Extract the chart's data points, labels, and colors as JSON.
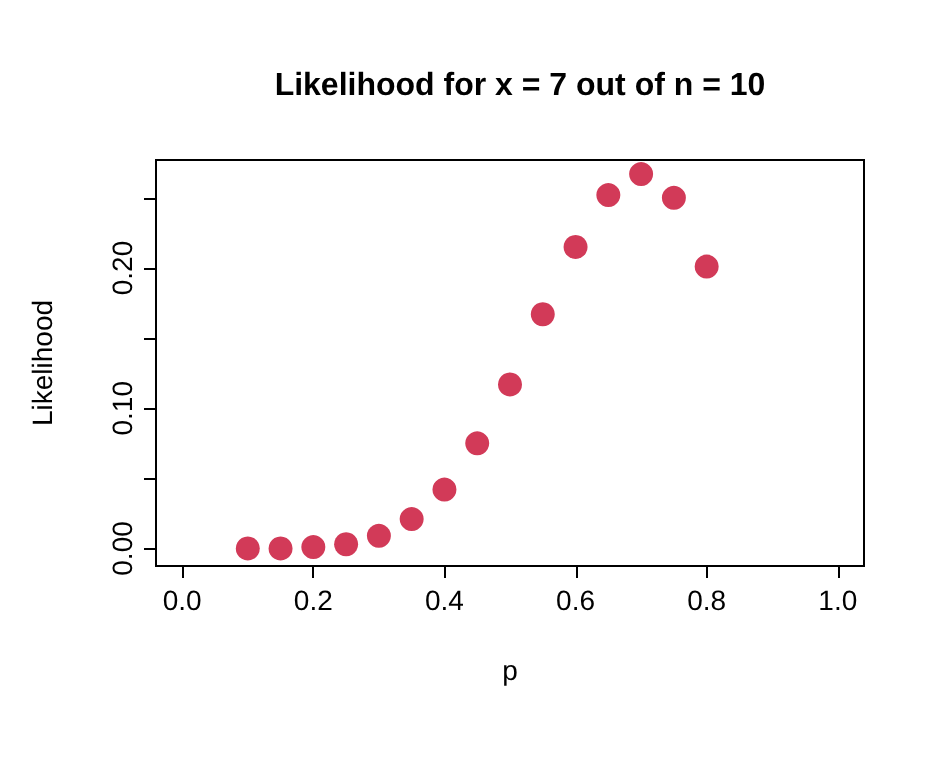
{
  "chart_data": {
    "type": "scatter",
    "title": "Likelihood for x = 7 out of n = 10",
    "xlabel": "p",
    "ylabel": "Likelihood",
    "x": [
      0.1,
      0.15,
      0.2,
      0.25,
      0.3,
      0.35,
      0.4,
      0.45,
      0.5,
      0.55,
      0.6,
      0.65,
      0.7,
      0.75,
      0.8
    ],
    "values": [
      0.0,
      0.0,
      0.001,
      0.003,
      0.009,
      0.021,
      0.042,
      0.075,
      0.117,
      0.167,
      0.215,
      0.252,
      0.267,
      0.25,
      0.201
    ],
    "color": "#d23a58",
    "marker": "circle",
    "grid": false,
    "xlim": [
      -0.04,
      1.04
    ],
    "xticks": [
      {
        "value": 0,
        "label": "0.0"
      },
      {
        "value": 0.2,
        "label": "0.2"
      },
      {
        "value": 0.4,
        "label": "0.4"
      },
      {
        "value": 0.6,
        "label": "0.6"
      },
      {
        "value": 0.8,
        "label": "0.8"
      },
      {
        "value": 1,
        "label": "1.0"
      }
    ],
    "ylim": [
      -0.0125,
      0.277
    ],
    "yticks": [
      {
        "value": 0,
        "label": "0.00"
      },
      {
        "value": 0.05,
        "label": null
      },
      {
        "value": 0.1,
        "label": "0.10"
      },
      {
        "value": 0.15,
        "label": null
      },
      {
        "value": 0.2,
        "label": "0.20"
      },
      {
        "value": 0.25,
        "label": null
      }
    ]
  }
}
